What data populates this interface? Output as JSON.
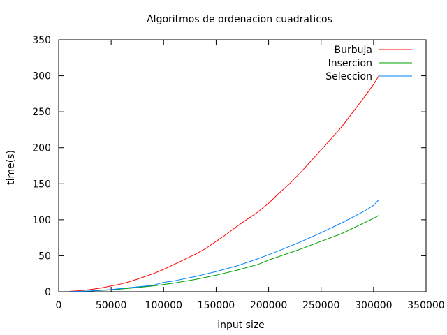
{
  "chart_data": {
    "type": "line",
    "title": "Algoritmos de ordenacion cuadraticos",
    "xlabel": "input size",
    "ylabel": "time(s)",
    "xlim": [
      0,
      350000
    ],
    "ylim": [
      0,
      350
    ],
    "xticks": [
      0,
      50000,
      100000,
      150000,
      200000,
      250000,
      300000,
      350000
    ],
    "yticks": [
      0,
      50,
      100,
      150,
      200,
      250,
      300,
      350
    ],
    "grid": false,
    "legend_position": "top-right",
    "series": [
      {
        "name": "Burbuja",
        "color": "#ff0000",
        "x": [
          10000,
          20000,
          30000,
          40000,
          50000,
          60000,
          70000,
          80000,
          90000,
          100000,
          110000,
          120000,
          130000,
          140000,
          150000,
          160000,
          170000,
          180000,
          190000,
          200000,
          210000,
          220000,
          230000,
          240000,
          250000,
          260000,
          270000,
          280000,
          290000,
          300000,
          305000
        ],
        "y": [
          0.5,
          1.5,
          3,
          5,
          8,
          11,
          15,
          20,
          25,
          31,
          38,
          45,
          52,
          60,
          70,
          80,
          91,
          101,
          111,
          123,
          137,
          150,
          165,
          181,
          197,
          213,
          230,
          249,
          268,
          288,
          300
        ]
      },
      {
        "name": "Insercion",
        "color": "#00a000",
        "x": [
          10000,
          30000,
          50000,
          70000,
          90000,
          110000,
          130000,
          150000,
          170000,
          190000,
          200000,
          210000,
          230000,
          250000,
          270000,
          280000,
          290000,
          300000,
          305000
        ],
        "y": [
          0,
          1,
          2.5,
          5,
          8,
          12,
          17,
          23,
          30,
          38,
          44,
          49,
          59,
          70,
          81,
          88,
          95,
          102,
          106
        ]
      },
      {
        "name": "Seleccion",
        "color": "#0080ff",
        "x": [
          10000,
          30000,
          50000,
          70000,
          90000,
          100000,
          110000,
          130000,
          150000,
          170000,
          190000,
          210000,
          230000,
          250000,
          270000,
          290000,
          300000,
          305000
        ],
        "y": [
          0,
          1,
          3,
          6,
          9,
          13,
          15,
          21,
          28,
          36,
          46,
          57,
          69,
          82,
          96,
          111,
          120,
          128
        ]
      }
    ]
  }
}
